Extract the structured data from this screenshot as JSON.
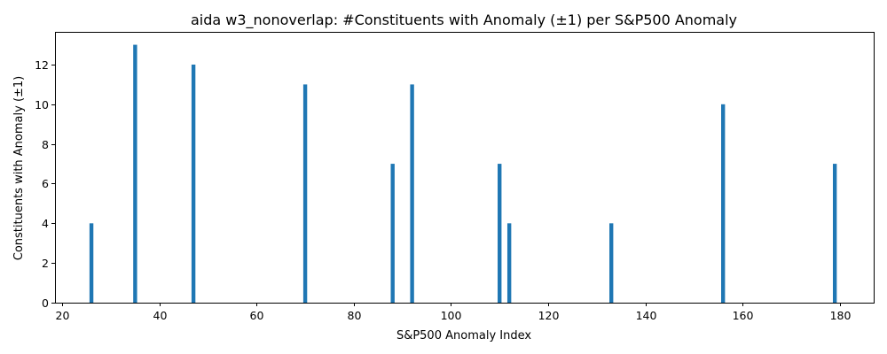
{
  "chart_data": {
    "type": "bar",
    "title": "aida w3_nonoverlap: #Constituents with Anomaly (±1) per S&P500 Anomaly",
    "xlabel": "S&P500 Anomaly Index",
    "ylabel": "Constituents with Anomaly (±1)",
    "x": [
      26,
      35,
      47,
      70,
      88,
      92,
      110,
      112,
      133,
      156,
      179
    ],
    "values": [
      4,
      13,
      12,
      11,
      7,
      11,
      7,
      4,
      4,
      10,
      7
    ],
    "bar_width": 0.8,
    "xlim": [
      18.5,
      187.0
    ],
    "ylim": [
      0,
      13.65
    ],
    "xticks": [
      20,
      40,
      60,
      80,
      100,
      120,
      140,
      160,
      180
    ],
    "yticks": [
      0,
      2,
      4,
      6,
      8,
      10,
      12
    ],
    "bar_color": "#1f77b4",
    "grid": false,
    "legend": "none"
  }
}
